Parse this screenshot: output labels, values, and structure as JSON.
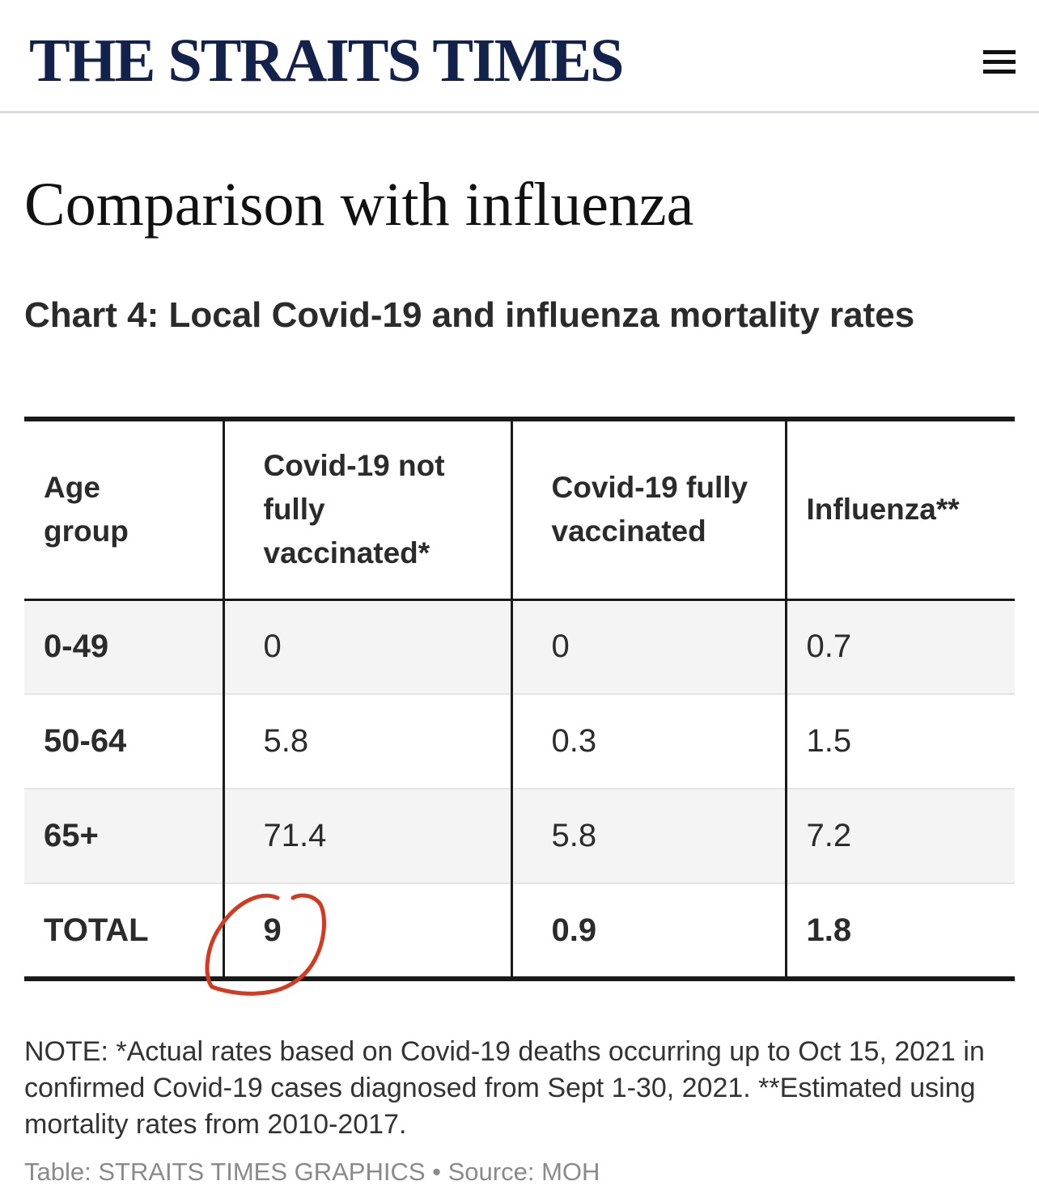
{
  "header": {
    "logo": "THE STRAITS TIMES",
    "menu_icon": "hamburger-menu-icon"
  },
  "article": {
    "title": "Comparison with influenza",
    "chart_title": "Chart 4: Local Covid-19 and influenza mortality rates"
  },
  "table": {
    "columns": [
      "Age group",
      "Covid-19 not fully vaccinated*",
      "Covid-19 fully vaccinated",
      "Influenza**"
    ],
    "rows": [
      [
        "0-49",
        "0",
        "0",
        "0.7"
      ],
      [
        "50-64",
        "5.8",
        "0.3",
        "1.5"
      ],
      [
        "65+",
        "71.4",
        "5.8",
        "7.2"
      ],
      [
        "TOTAL",
        "9",
        "0.9",
        "1.8"
      ]
    ]
  },
  "annotation": {
    "highlighted_cell": "TOTAL / Covid-19 not fully vaccinated*",
    "color": "#d23a22"
  },
  "note": "NOTE: *Actual rates based on Covid-19 deaths occurring up to Oct 15, 2021 in confirmed Covid-19 cases diagnosed from Sept 1-30, 2021. **Estimated using mortality rates from 2010-2017.",
  "source": "Table: STRAITS TIMES GRAPHICS • Source: MOH",
  "colors": {
    "brand": "#13224a",
    "rule": "#1a1a1a",
    "shade": "#f4f4f4",
    "muted": "#8a8a8a"
  }
}
